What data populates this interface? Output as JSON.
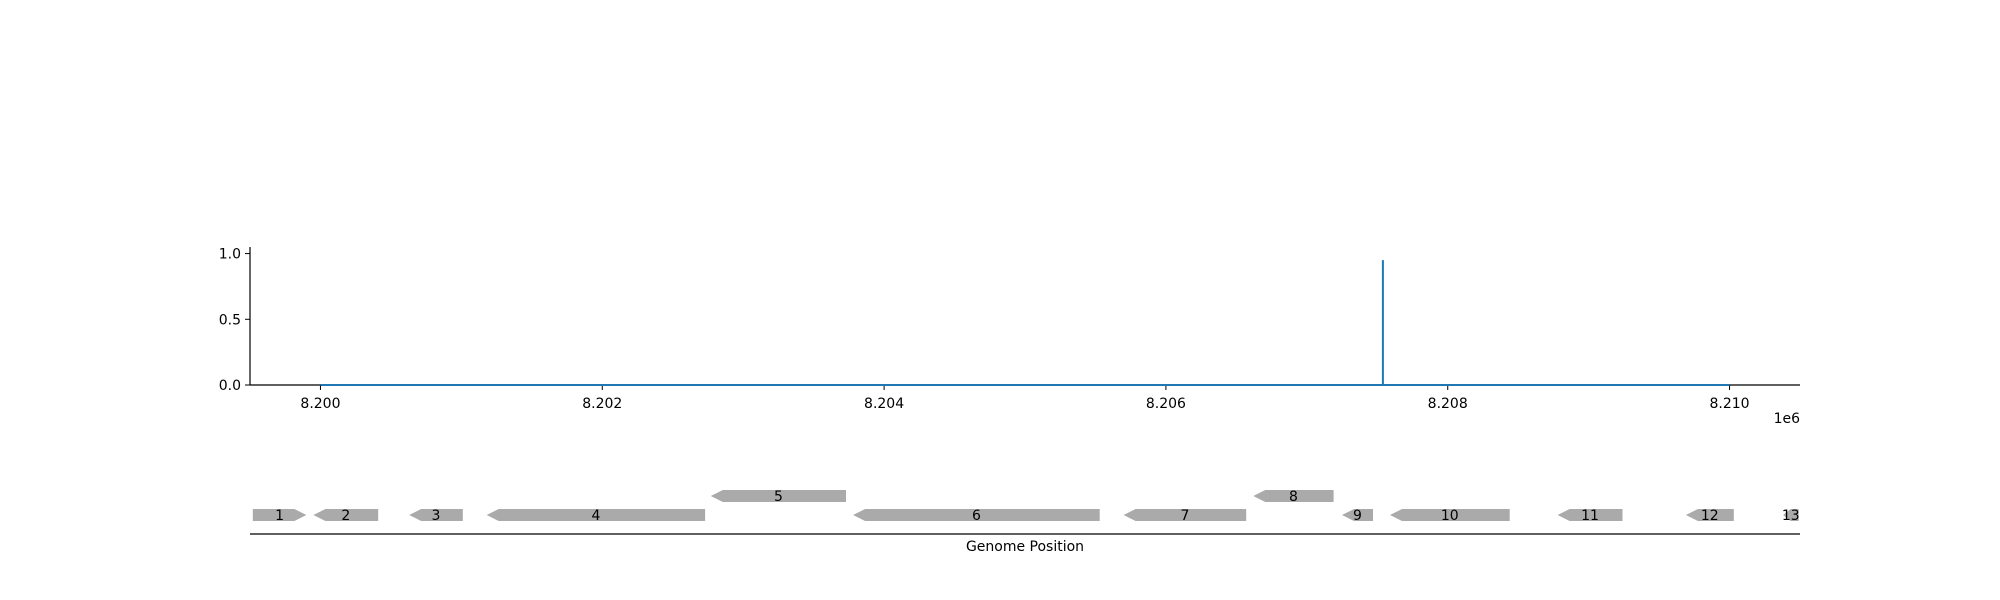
{
  "chart_data": [
    {
      "type": "line",
      "title": "",
      "xlabel": "",
      "ylabel": "",
      "x_offset_label": "1e6",
      "xlim": [
        8199500,
        8210500
      ],
      "ylim": [
        0.0,
        1.05
      ],
      "x_ticks": [
        8200000,
        8202000,
        8204000,
        8206000,
        8208000,
        8210000
      ],
      "x_tick_labels": [
        "8.200",
        "8.202",
        "8.204",
        "8.206",
        "8.208",
        "8.210"
      ],
      "y_ticks": [
        0.0,
        0.5,
        1.0
      ],
      "y_tick_labels": [
        "0.0",
        "0.5",
        "1.0"
      ],
      "grid": false,
      "color": "#1f77b4",
      "series": [
        {
          "x": [
            8200000,
            8207540,
            8207540,
            8207540,
            8210000
          ],
          "y": [
            0.0,
            0.0,
            0.95,
            0.0,
            0.0
          ]
        }
      ]
    },
    {
      "type": "gene-track",
      "xlabel": "Genome Position",
      "xlim": [
        8199500,
        8210500
      ],
      "color": "#aaaaaa",
      "genes": [
        {
          "label": "1",
          "start": 8199520,
          "end": 8199900,
          "strand": "+",
          "row": 0
        },
        {
          "label": "2",
          "start": 8199950,
          "end": 8200410,
          "strand": "-",
          "row": 0
        },
        {
          "label": "3",
          "start": 8200630,
          "end": 8201010,
          "strand": "-",
          "row": 0
        },
        {
          "label": "4",
          "start": 8201180,
          "end": 8202730,
          "strand": "-",
          "row": 0
        },
        {
          "label": "5",
          "start": 8202770,
          "end": 8203730,
          "strand": "-",
          "row": 1
        },
        {
          "label": "6",
          "start": 8203780,
          "end": 8205530,
          "strand": "-",
          "row": 0
        },
        {
          "label": "7",
          "start": 8205700,
          "end": 8206570,
          "strand": "-",
          "row": 0
        },
        {
          "label": "8",
          "start": 8206620,
          "end": 8207190,
          "strand": "-",
          "row": 1
        },
        {
          "label": "9",
          "start": 8207250,
          "end": 8207470,
          "strand": "-",
          "row": 0
        },
        {
          "label": "10",
          "start": 8207590,
          "end": 8208440,
          "strand": "-",
          "row": 0
        },
        {
          "label": "11",
          "start": 8208780,
          "end": 8209240,
          "strand": "-",
          "row": 0
        },
        {
          "label": "12",
          "start": 8209690,
          "end": 8210030,
          "strand": "-",
          "row": 0
        },
        {
          "label": "13",
          "start": 8210380,
          "end": 8210490,
          "strand": "-",
          "row": 0
        }
      ]
    }
  ]
}
